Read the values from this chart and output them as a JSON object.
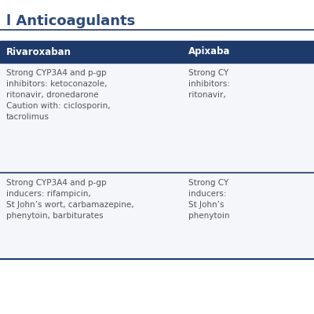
{
  "title": "l Anticoagulants",
  "title_color": "#2d4a7a",
  "title_fontsize": 13,
  "header_bg": "#1e3a6b",
  "header_text_color": "#ffffff",
  "header_fontsize": 8.5,
  "headers": [
    "Rivaroxaban",
    "Apixaba"
  ],
  "body_fontsize": 7.5,
  "body_text_color": "#555555",
  "bg_color": "#ffffff",
  "border_color": "#1e3a6b",
  "title_line_color": "#1e3a6b",
  "row1_col1": "Strong CYP3A4 and p-gp\ninhibitors: ketoconazole,\nritonavir, dronedarone\nCaution with: ciclosporin,\ntacrolimus",
  "row1_col2": "Strong CY\ninhibitors:\nritonavir,",
  "row2_col1": "Strong CYP3A4 and p-gp\ninducers: rifampicin,\nSt John’s wort, carbamazepine,\nphenytoin, barbiturates",
  "row2_col2": "Strong CY\ninducers:\nSt John’s\nphenytoin"
}
